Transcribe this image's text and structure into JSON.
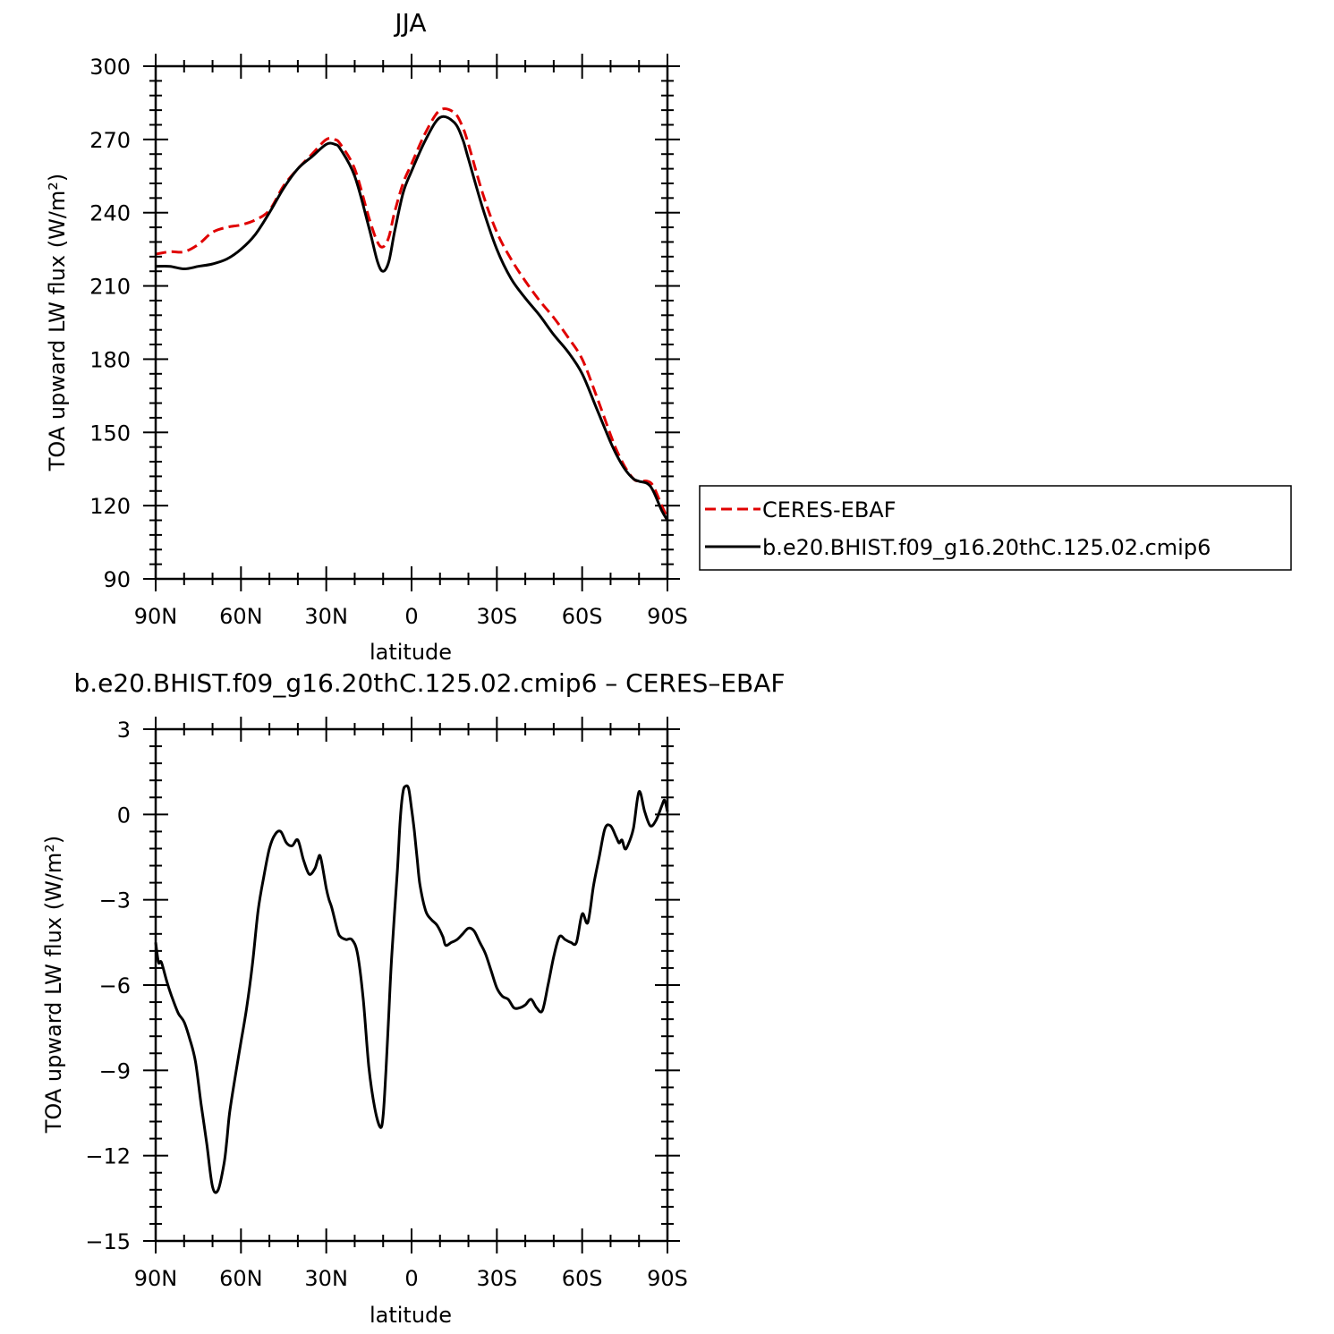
{
  "chart_data": [
    {
      "type": "line",
      "title": "JJA",
      "xlabel": "latitude",
      "ylabel": "TOA upward LW flux (W/m²)",
      "xlim": [
        90,
        -90
      ],
      "ylim": [
        90,
        300
      ],
      "x_ticks": [
        90,
        60,
        30,
        0,
        -30,
        -60,
        -90
      ],
      "x_tick_labels": [
        "90N",
        "60N",
        "30N",
        "0",
        "30S",
        "60S",
        "90S"
      ],
      "y_ticks": [
        90,
        120,
        150,
        180,
        210,
        240,
        270,
        300
      ],
      "y_tick_labels": [
        "90",
        "120",
        "150",
        "180",
        "210",
        "240",
        "270",
        "300"
      ],
      "grid": false,
      "legend_position": "right",
      "series": [
        {
          "name": "CERES-EBAF",
          "color": "#e00000",
          "dash": "dashed",
          "x": [
            90,
            85,
            80,
            75,
            70,
            65,
            60,
            55,
            50,
            45,
            40,
            35,
            30,
            27,
            25,
            20,
            15,
            12,
            10,
            8,
            6,
            3,
            0,
            -5,
            -10,
            -15,
            -18,
            -20,
            -25,
            -30,
            -35,
            -40,
            -45,
            -50,
            -55,
            -60,
            -65,
            -70,
            -72,
            -75,
            -78,
            -80,
            -83,
            -85,
            -88,
            -90
          ],
          "y": [
            223,
            224,
            224,
            227,
            232,
            234,
            235,
            237,
            241,
            251,
            258,
            264,
            270,
            270,
            268,
            258,
            238,
            228,
            226,
            230,
            240,
            252,
            260,
            273,
            282,
            281,
            275,
            268,
            248,
            232,
            221,
            212,
            204,
            197,
            189,
            180,
            165,
            149,
            143,
            136,
            131,
            130,
            130,
            128,
            120,
            115
          ]
        },
        {
          "name": "b.e20.BHIST.f09_g16.20thC.125.02.cmip6",
          "color": "#000000",
          "dash": "solid",
          "x": [
            90,
            85,
            80,
            75,
            70,
            65,
            60,
            55,
            50,
            45,
            40,
            35,
            30,
            27,
            25,
            20,
            15,
            12,
            10,
            8,
            6,
            3,
            0,
            -5,
            -10,
            -15,
            -18,
            -20,
            -25,
            -30,
            -35,
            -40,
            -45,
            -50,
            -55,
            -60,
            -65,
            -70,
            -72,
            -75,
            -78,
            -80,
            -83,
            -85,
            -88,
            -90
          ],
          "y": [
            218,
            218,
            217,
            218,
            219,
            221,
            225,
            231,
            240,
            250,
            258,
            263,
            268,
            268,
            266,
            255,
            234,
            220,
            216,
            220,
            232,
            248,
            257,
            270,
            279,
            277,
            270,
            262,
            242,
            225,
            213,
            205,
            198,
            190,
            183,
            174,
            160,
            146,
            141,
            135,
            131,
            130,
            129,
            126,
            118,
            114
          ]
        }
      ]
    },
    {
      "type": "line",
      "title": "b.e20.BHIST.f09_g16.20thC.125.02.cmip6 – CERES–EBAF",
      "xlabel": "latitude",
      "ylabel": "TOA upward LW flux (W/m²)",
      "xlim": [
        90,
        -90
      ],
      "ylim": [
        -15,
        3
      ],
      "x_ticks": [
        90,
        60,
        30,
        0,
        -30,
        -60,
        -90
      ],
      "x_tick_labels": [
        "90N",
        "60N",
        "30N",
        "0",
        "30S",
        "60S",
        "90S"
      ],
      "y_ticks": [
        -15,
        -12,
        -9,
        -6,
        -3,
        0,
        3
      ],
      "y_tick_labels": [
        "−15",
        "−12",
        "−9",
        "−6",
        "−3",
        "0",
        "3"
      ],
      "grid": false,
      "series": [
        {
          "color": "#000000",
          "dash": "solid",
          "x": [
            90,
            89,
            88,
            86,
            84,
            82,
            80,
            78,
            76,
            74,
            72,
            70,
            68,
            66,
            65,
            64,
            62,
            60,
            58,
            56,
            54,
            52,
            50,
            48,
            46,
            44,
            42,
            40,
            38,
            36,
            34,
            33,
            32,
            30,
            29,
            28,
            26,
            25,
            23,
            21,
            19,
            17,
            15,
            13,
            11,
            10,
            9,
            8,
            7,
            5,
            4,
            3,
            2,
            1,
            0,
            -1,
            -2,
            -3,
            -5,
            -7,
            -9,
            -11,
            -12,
            -14,
            -16,
            -18,
            -20,
            -22,
            -24,
            -26,
            -28,
            -30,
            -32,
            -34,
            -36,
            -38,
            -40,
            -42,
            -44,
            -46,
            -48,
            -50,
            -52,
            -54,
            -56,
            -58,
            -60,
            -62,
            -64,
            -66,
            -68,
            -70,
            -72,
            -73,
            -74,
            -75,
            -76,
            -78,
            -80,
            -82,
            -84,
            -86,
            -88,
            -89,
            -90
          ],
          "y": [
            -4.5,
            -5.2,
            -5.2,
            -5.9,
            -6.5,
            -7.0,
            -7.3,
            -7.9,
            -8.7,
            -10.2,
            -11.6,
            -13.1,
            -13.2,
            -12.3,
            -11.5,
            -10.5,
            -9.2,
            -8.0,
            -6.8,
            -5.3,
            -3.4,
            -2.2,
            -1.2,
            -0.7,
            -0.6,
            -1.0,
            -1.1,
            -0.9,
            -1.6,
            -2.1,
            -1.9,
            -1.6,
            -1.5,
            -2.6,
            -3.0,
            -3.3,
            -4.1,
            -4.3,
            -4.4,
            -4.4,
            -4.9,
            -6.5,
            -8.9,
            -10.3,
            -11.0,
            -10.6,
            -9.0,
            -7.0,
            -5.0,
            -2.0,
            -0.2,
            0.8,
            1.0,
            0.9,
            0.2,
            -0.6,
            -1.6,
            -2.5,
            -3.4,
            -3.7,
            -3.9,
            -4.3,
            -4.6,
            -4.5,
            -4.4,
            -4.2,
            -4.0,
            -4.1,
            -4.5,
            -4.9,
            -5.5,
            -6.1,
            -6.4,
            -6.5,
            -6.8,
            -6.8,
            -6.7,
            -6.5,
            -6.8,
            -6.9,
            -6.0,
            -5.0,
            -4.3,
            -4.4,
            -4.5,
            -4.5,
            -3.5,
            -3.8,
            -2.5,
            -1.5,
            -0.5,
            -0.4,
            -0.8,
            -1.0,
            -0.9,
            -1.2,
            -1.1,
            -0.5,
            0.8,
            0.1,
            -0.4,
            -0.2,
            0.3,
            0.5,
            0.1
          ]
        }
      ]
    }
  ]
}
